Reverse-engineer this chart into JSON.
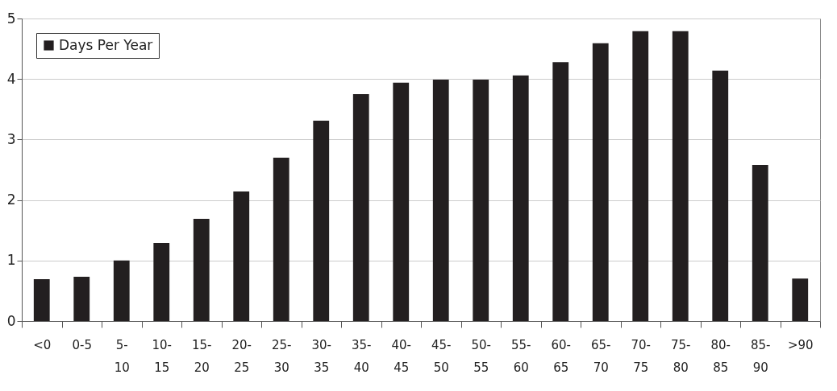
{
  "chart_data": {
    "type": "bar",
    "categories": [
      "<0",
      "0-5",
      "5-10",
      "10-15",
      "15-20",
      "20-25",
      "25-30",
      "30-35",
      "35-40",
      "40-45",
      "45-50",
      "50-55",
      "55-60",
      "60-65",
      "65-70",
      "70-75",
      "75-80",
      "80-85",
      "85-90",
      ">90"
    ],
    "series": [
      {
        "name": "Days Per Year",
        "color": "#231f20",
        "values": [
          0.69,
          0.73,
          1.0,
          1.29,
          1.69,
          2.14,
          2.7,
          3.31,
          3.75,
          3.94,
          3.99,
          3.99,
          4.06,
          4.28,
          4.59,
          4.79,
          4.79,
          4.14,
          2.58,
          0.7
        ]
      }
    ],
    "ylim": [
      0,
      5
    ],
    "yticks": [
      0,
      1,
      2,
      3,
      4,
      5
    ],
    "grid": "y",
    "legend": "top left"
  }
}
